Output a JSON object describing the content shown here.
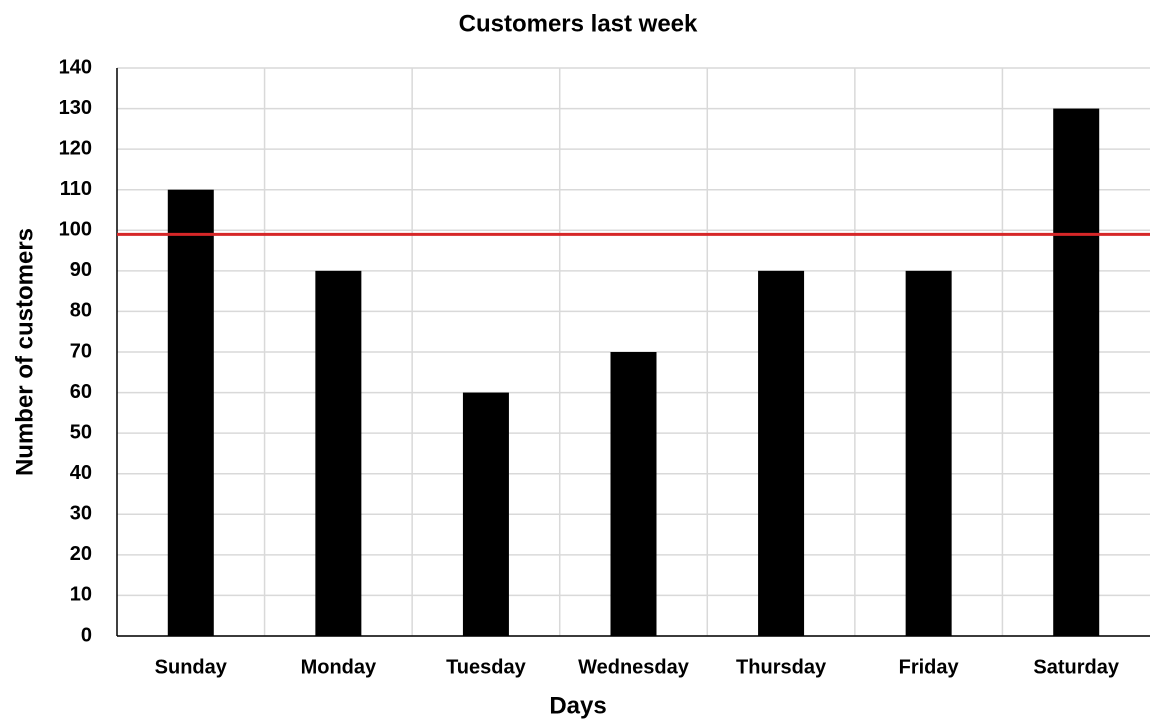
{
  "chart_data": {
    "type": "bar",
    "title": "Customers last week",
    "x_label": "Days",
    "y_label": "Number of customers",
    "categories": [
      "Sunday",
      "Monday",
      "Tuesday",
      "Wednesday",
      "Thursday",
      "Friday",
      "Saturday"
    ],
    "values": [
      110,
      90,
      60,
      70,
      90,
      90,
      130
    ],
    "color": "#000000",
    "ylim": [
      0,
      140
    ],
    "yticks": [
      0,
      10,
      20,
      30,
      40,
      50,
      60,
      70,
      80,
      90,
      100,
      110,
      120,
      130,
      140
    ],
    "grid": true,
    "reference_line": {
      "value": 99,
      "color": "#d62728"
    }
  }
}
